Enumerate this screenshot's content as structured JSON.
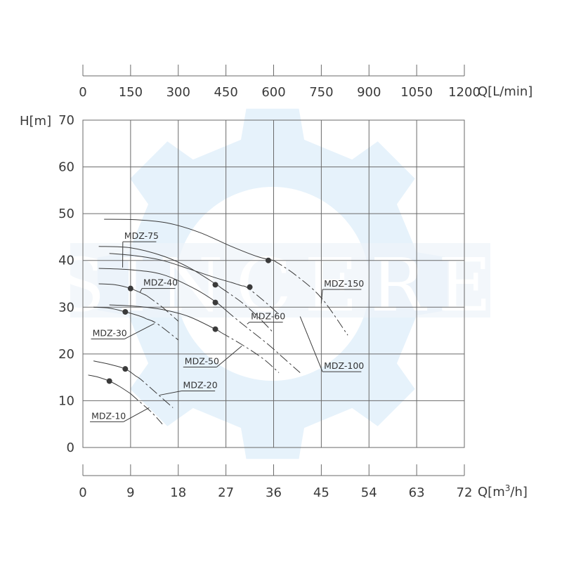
{
  "chart_data": {
    "type": "line",
    "title": "",
    "watermark_text": "SINCERE",
    "colors": {
      "curve": "#3a3a3a",
      "grid": "#6a6a6a",
      "watermark": "#e6f2fb",
      "text": "#3a3a3a"
    },
    "ylabel": "H[m]",
    "ylim": [
      0,
      70
    ],
    "yticks": [
      "0",
      "10",
      "20",
      "30",
      "40",
      "50",
      "60",
      "70"
    ],
    "xlabel_bottom": "Q[m³/h]",
    "xlim_bottom": [
      0,
      72
    ],
    "xticks_bottom": [
      "0",
      "9",
      "18",
      "27",
      "36",
      "45",
      "54",
      "63",
      "72"
    ],
    "xlabel_top": "Q[L/min]",
    "xlim_top": [
      0,
      1200
    ],
    "xticks_top": [
      "0",
      "150",
      "300",
      "450",
      "600",
      "750",
      "900",
      "1050",
      "1200"
    ],
    "grid": true,
    "series": [
      {
        "name": "MDZ-10",
        "x": [
          1,
          3,
          5,
          7,
          9,
          11,
          13,
          15
        ],
        "y": [
          15.5,
          15,
          14.2,
          13,
          11.5,
          9.5,
          7.5,
          5
        ],
        "dot": [
          5,
          14.2
        ],
        "solid_until": 9
      },
      {
        "name": "MDZ-20",
        "x": [
          2,
          5,
          8,
          11,
          14,
          17
        ],
        "y": [
          18.5,
          17.8,
          16.8,
          14.5,
          11.5,
          8.5
        ],
        "dot": [
          8,
          16.8
        ],
        "solid_until": 10
      },
      {
        "name": "MDZ-30",
        "x": [
          2,
          5,
          8,
          11,
          14,
          18
        ],
        "y": [
          30,
          29.8,
          29,
          28,
          26.5,
          23
        ],
        "dot": [
          8,
          29
        ],
        "solid_until": 12
      },
      {
        "name": "MDZ-40",
        "x": [
          3,
          6,
          9,
          12,
          15,
          18
        ],
        "y": [
          35,
          34.8,
          34,
          32.5,
          30,
          27
        ],
        "dot": [
          9,
          34
        ],
        "solid_until": 12
      },
      {
        "name": "MDZ-50",
        "x": [
          5,
          10,
          15,
          20,
          25,
          30,
          34,
          37
        ],
        "y": [
          30.5,
          30.2,
          29.5,
          28,
          25.3,
          22,
          19,
          16
        ],
        "dot": [
          25,
          25.3
        ],
        "solid_until": 26
      },
      {
        "name": "MDZ-60",
        "x": [
          3,
          9,
          15,
          21,
          25,
          30,
          35,
          38,
          41
        ],
        "y": [
          38.3,
          38,
          37,
          34,
          31.2,
          26.5,
          22,
          19,
          16
        ],
        "dot": [
          25,
          31
        ],
        "solid_until": 27
      },
      {
        "name": "MDZ-75",
        "x": [
          3,
          9,
          15,
          20,
          25,
          30,
          33,
          36
        ],
        "y": [
          43,
          42.7,
          41,
          38.5,
          35,
          31,
          28,
          24.5
        ],
        "dot": [
          25,
          34.8
        ],
        "solid_until": 26
      },
      {
        "name": "MDZ-100",
        "x": [
          5,
          10,
          15,
          20,
          25,
          28,
          31,
          34,
          37
        ],
        "y": [
          41.5,
          41,
          40,
          38.2,
          36.3,
          35.3,
          34.2,
          31.5,
          28.5
        ],
        "dot": [
          31.5,
          34.3
        ],
        "solid_until": 30
      },
      {
        "name": "MDZ-150",
        "x": [
          4,
          10,
          16,
          22,
          28,
          33,
          36,
          40,
          45,
          50
        ],
        "y": [
          48.8,
          48.7,
          48,
          46,
          43,
          40.8,
          40,
          37,
          32,
          24
        ],
        "dot": [
          35,
          40
        ],
        "solid_until": 36
      }
    ],
    "labels": [
      {
        "text": "MDZ-75",
        "tx": 7.8,
        "ty": 44.6,
        "ax": 7.5,
        "ay": 38.5
      },
      {
        "text": "MDZ-40",
        "tx": 11.4,
        "ty": 34.6,
        "ax": 10.8,
        "ay": 33.2
      },
      {
        "text": "MDZ-30",
        "tx": 1.8,
        "ty": 23.8,
        "ax": 13.5,
        "ay": 26.5
      },
      {
        "text": "MDZ-60",
        "tx": 31.7,
        "ty": 27.4,
        "ax": 31,
        "ay": 26.4
      },
      {
        "text": "MDZ-150",
        "tx": 45.5,
        "ty": 34.4,
        "ax": 45,
        "ay": 30.8
      },
      {
        "text": "MDZ-50",
        "tx": 19.2,
        "ty": 17.8,
        "ax": 30,
        "ay": 21.7
      },
      {
        "text": "MDZ-100",
        "tx": 45.5,
        "ty": 16.8,
        "ax": 41,
        "ay": 28
      },
      {
        "text": "MDZ-20",
        "tx": 18.9,
        "ty": 12.7,
        "ax": 14.5,
        "ay": 11.2
      },
      {
        "text": "MDZ-10",
        "tx": 1.6,
        "ty": 6.1,
        "ax": 12.5,
        "ay": 8.5
      }
    ]
  }
}
